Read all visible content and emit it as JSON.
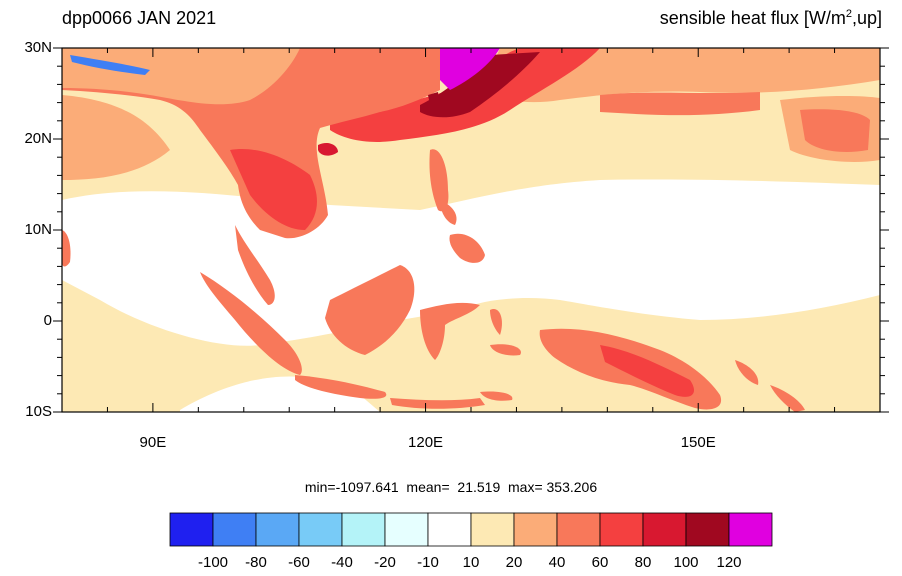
{
  "header": {
    "left_title": "dpp0066 JAN 2021",
    "right_title_prefix": "sensible heat flux [W/m",
    "right_title_sup": "2",
    "right_title_suffix": ",up]"
  },
  "map": {
    "lon_range": [
      80,
      170
    ],
    "lat_range": [
      -10,
      30
    ],
    "lat_tick_labels": [
      "30N",
      "20N",
      "10N",
      "0",
      "10S"
    ],
    "lat_tick_values": [
      30,
      20,
      10,
      0,
      -10
    ],
    "lon_tick_labels": [
      "90E",
      "120E",
      "150E"
    ],
    "lon_tick_values": [
      90,
      120,
      150
    ]
  },
  "stats": {
    "text": "min=-1097.641  mean=  21.519  max= 353.206"
  },
  "colorbar": {
    "levels": [
      "-100",
      "-80",
      "-60",
      "-40",
      "-20",
      "-10",
      "10",
      "20",
      "40",
      "60",
      "80",
      "100",
      "120"
    ],
    "colors": [
      "#1f20f0",
      "#3f7ff4",
      "#5aa8f5",
      "#78cbf7",
      "#b4f3f8",
      "#e6ffff",
      "#ffffff",
      "#fde9b4",
      "#fbac78",
      "#f8785a",
      "#f44040",
      "#d81830",
      "#a00820",
      "#e000e0"
    ]
  }
}
